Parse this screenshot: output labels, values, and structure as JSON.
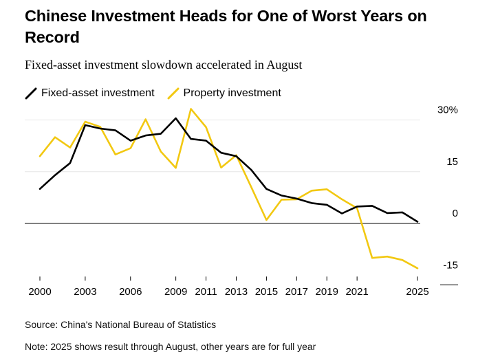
{
  "title": "Chinese Investment Heads for One of Worst Years on Record",
  "subtitle": "Fixed-asset investment slowdown accelerated in August",
  "colors": {
    "fixed": "#000000",
    "property": "#f2c811",
    "grid": "#e6e6e6",
    "zero": "#000000"
  },
  "chart_data": {
    "type": "line",
    "title": "Chinese Investment Heads for One of Worst Years on Record",
    "xlabel": "",
    "ylabel": "",
    "ylim": [
      -15,
      30
    ],
    "xlim": [
      2000,
      2025
    ],
    "ytick_values": [
      30,
      15,
      0,
      -15
    ],
    "ytick_labels": [
      "30%",
      "15",
      "0",
      "-15"
    ],
    "xtick_values": [
      2000,
      2003,
      2006,
      2009,
      2011,
      2013,
      2015,
      2017,
      2019,
      2021,
      2025
    ],
    "xtick_labels": [
      "2000",
      "2003",
      "2006",
      "2009",
      "2011",
      "2013",
      "2015",
      "2017",
      "2019",
      "2021",
      "2025"
    ],
    "series": [
      {
        "name": "Fixed-asset investment",
        "color": "#000000",
        "x": [
          2000,
          2001,
          2002,
          2003,
          2004,
          2005,
          2006,
          2007,
          2008,
          2009,
          2010,
          2011,
          2012,
          2013,
          2014,
          2015,
          2016,
          2017,
          2018,
          2019,
          2020,
          2021,
          2022,
          2023,
          2024,
          2025
        ],
        "values": [
          10,
          14,
          17.5,
          28.5,
          27.5,
          27,
          24,
          25.5,
          26,
          30.5,
          24.5,
          24,
          20.5,
          19.5,
          15.5,
          10,
          8.1,
          7.2,
          5.9,
          5.4,
          2.9,
          4.9,
          5.1,
          3.0,
          3.2,
          0.5
        ]
      },
      {
        "name": "Property investment",
        "color": "#f2c811",
        "x": [
          2000,
          2001,
          2002,
          2003,
          2004,
          2005,
          2006,
          2007,
          2008,
          2009,
          2010,
          2011,
          2012,
          2013,
          2014,
          2015,
          2016,
          2017,
          2018,
          2019,
          2020,
          2021,
          2022,
          2023,
          2024,
          2025
        ],
        "values": [
          19.5,
          25,
          22,
          29.5,
          28,
          20,
          21.8,
          30.2,
          20.9,
          16.1,
          33.2,
          27.9,
          16.2,
          19.8,
          10.5,
          1.0,
          6.9,
          7.0,
          9.5,
          9.9,
          7.0,
          4.4,
          -10,
          -9.6,
          -10.6,
          -13
        ]
      }
    ]
  },
  "legend": {
    "fixed_label": "Fixed-asset investment",
    "property_label": "Property investment"
  },
  "footer": {
    "source": "Source: China's National Bureau of Statistics",
    "note": "Note: 2025 shows result through August, other years are for full year"
  }
}
